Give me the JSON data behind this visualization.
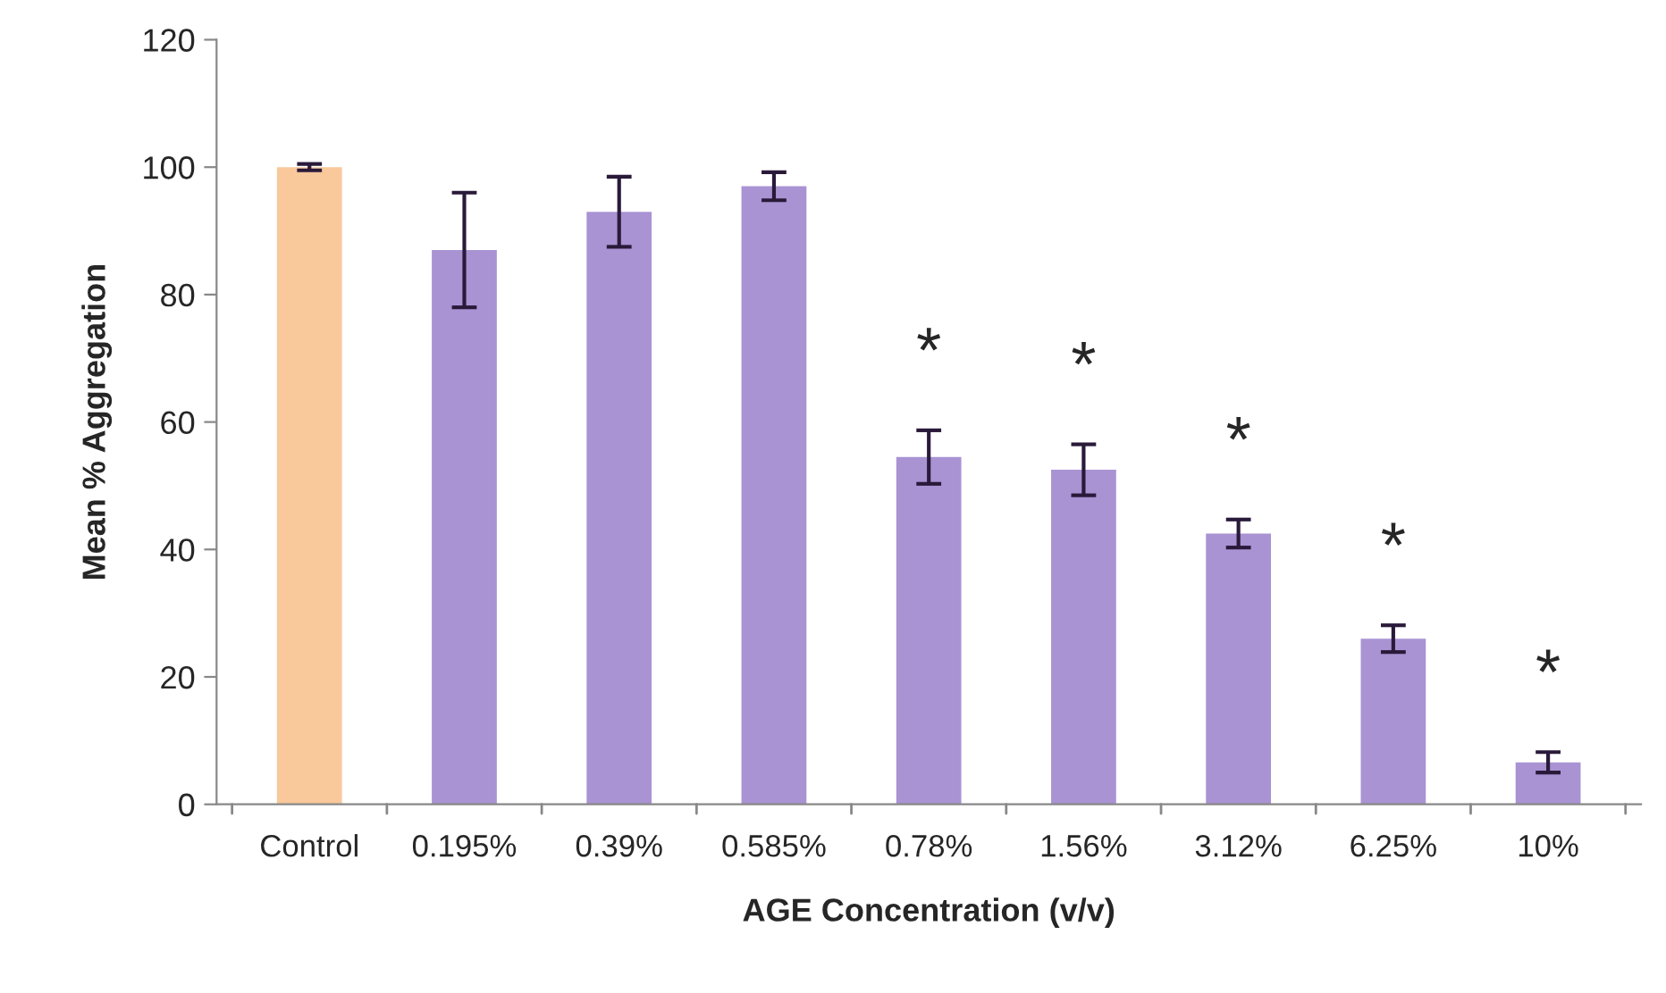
{
  "chart_data": {
    "type": "bar",
    "xlabel": "AGE Concentration (v/v)",
    "ylabel": "Mean % Aggregation",
    "categories": [
      "Control",
      "0.195%",
      "0.39%",
      "0.585%",
      "0.78%",
      "1.56%",
      "3.12%",
      "6.25%",
      "10%"
    ],
    "values": [
      100,
      87,
      93,
      97,
      54.5,
      52.5,
      42.5,
      26,
      6.6
    ],
    "errors": [
      0.5,
      9,
      5.5,
      2.2,
      4.2,
      4,
      2.2,
      2.1,
      1.6
    ],
    "colors": [
      "#f9c89b",
      "#a993d3",
      "#a993d3",
      "#a993d3",
      "#a993d3",
      "#a993d3",
      "#a993d3",
      "#a993d3",
      "#a993d3"
    ],
    "value_labels": [
      null,
      null,
      null,
      null,
      "*",
      "*",
      "*",
      "*",
      "*"
    ],
    "ylim": [
      0,
      120
    ],
    "yticks": [
      0,
      20,
      40,
      60,
      80,
      100,
      120
    ],
    "grid": false,
    "legend": false
  }
}
